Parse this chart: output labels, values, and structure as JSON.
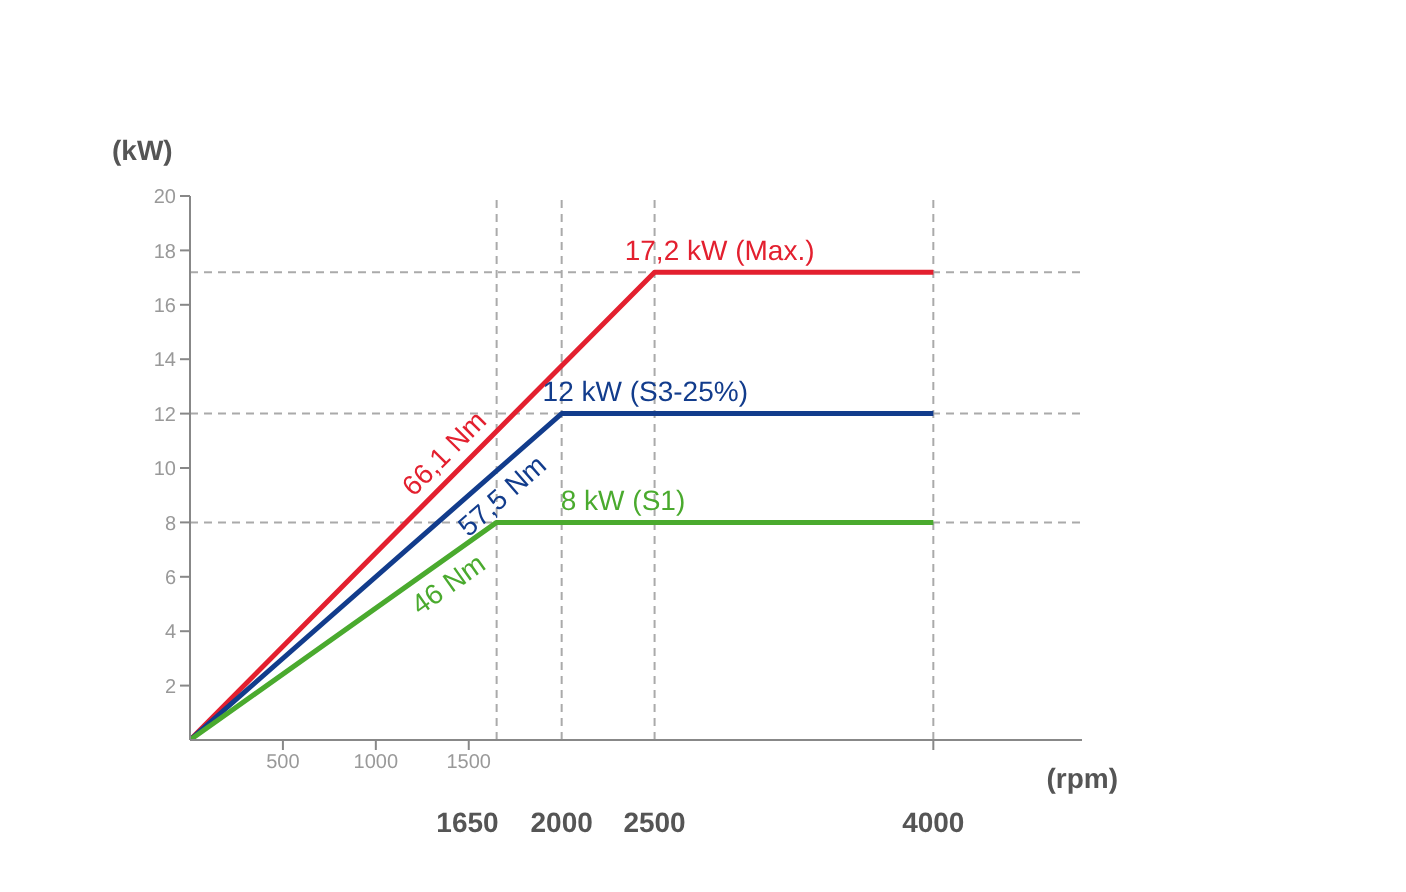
{
  "chart_data": {
    "type": "line",
    "xlabel": "(rpm)",
    "ylabel": "(kW)",
    "xlim": [
      0,
      4800
    ],
    "xticks": [
      500,
      1000,
      1500,
      {
        "value": 4000,
        "label": null
      }
    ],
    "ylim": [
      0,
      20
    ],
    "yticks": [
      2,
      4,
      6,
      8,
      10,
      12,
      14,
      16,
      18,
      20
    ],
    "marker": "none",
    "line_style": "solid",
    "series": [
      {
        "color": "#e3202f",
        "x": [
          0,
          2500,
          4000
        ],
        "values": [
          0,
          17.2,
          17.2
        ]
      },
      {
        "color": "#123c8c",
        "x": [
          0,
          2000,
          4000
        ],
        "values": [
          0,
          12,
          12
        ]
      },
      {
        "color": "#4aaa2e",
        "x": [
          0,
          1650,
          4000
        ],
        "values": [
          0,
          8,
          8
        ]
      }
    ],
    "ref_lines": [
      {
        "axis": "y",
        "value": 17.2,
        "color": "#aaaaaa",
        "line_style": "dashed"
      },
      {
        "axis": "y",
        "value": 12,
        "color": "#aaaaaa",
        "line_style": "dashed"
      },
      {
        "axis": "y",
        "value": 8,
        "color": "#aaaaaa",
        "line_style": "dashed"
      },
      {
        "axis": "x",
        "value": 1650,
        "label": "1650",
        "color": "#aaaaaa",
        "line_style": "dashed"
      },
      {
        "axis": "x",
        "value": 2000,
        "label": "2000",
        "color": "#aaaaaa",
        "line_style": "dashed"
      },
      {
        "axis": "x",
        "value": 2500,
        "label": "2500",
        "color": "#aaaaaa",
        "line_style": "dashed"
      },
      {
        "axis": "x",
        "value": 4000,
        "label": "4000",
        "color": "#aaaaaa",
        "line_style": "dashed"
      }
    ],
    "annotations": [
      {
        "text": "17,2 kW (Max.)",
        "x": 2850,
        "y": 17.2
      },
      {
        "text": "12 kW (S3-25%)",
        "x": 2450,
        "y": 12
      },
      {
        "text": "8 kW (S1)",
        "x": 2330,
        "y": 8
      },
      {
        "text": "66,1 Nm",
        "x": 1450,
        "y": 9.98
      },
      {
        "text": "57,5 Nm",
        "x": 1600,
        "y": 9.6
      },
      {
        "text": "46 Nm",
        "x": 1320,
        "y": 6.4
      }
    ]
  }
}
